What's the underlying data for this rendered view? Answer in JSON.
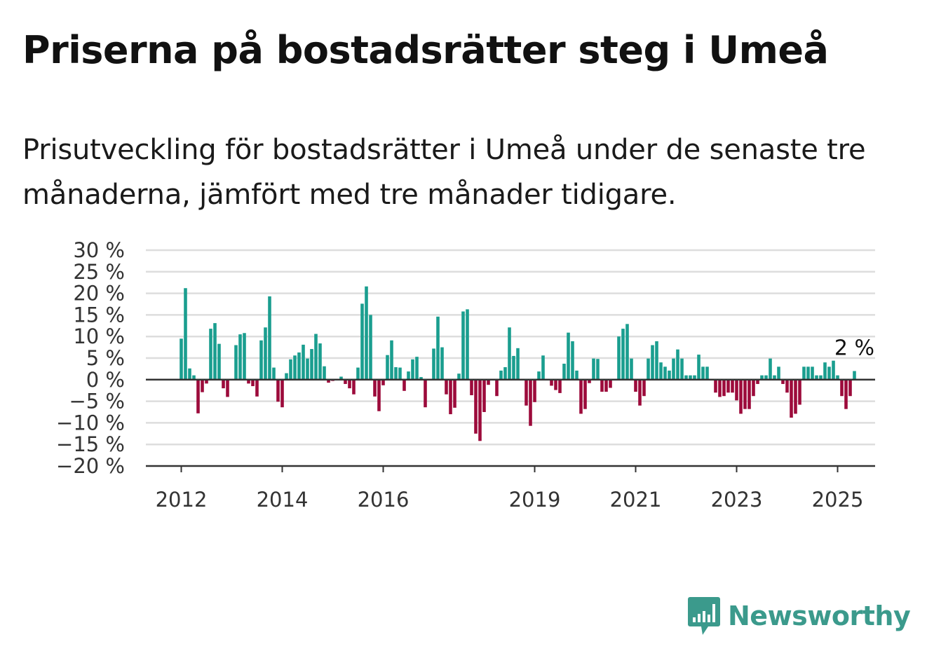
{
  "header": {
    "title": "Priserna på bostadsrätter steg i Umeå",
    "subtitle": "Prisutveckling för bostadsrätter i Umeå under de senaste tre månaderna, jämfört med tre månader tidigare."
  },
  "logo": {
    "text": "Newsworthy",
    "icon": "bar-chart-speech-bubble-icon"
  },
  "colors": {
    "positive": "#1a9e8f",
    "negative": "#9c0b3b",
    "grid": "#dddddd",
    "axis": "#333333",
    "brand": "#3b9a8c"
  },
  "chart_data": {
    "type": "bar",
    "title": "",
    "xlabel": "",
    "ylabel": "",
    "ylim": [
      -20,
      30
    ],
    "yticks": [
      30,
      25,
      20,
      15,
      10,
      5,
      0,
      -5,
      -10,
      -15,
      -20
    ],
    "ytick_labels": [
      "30 %",
      "25 %",
      "20 %",
      "15 %",
      "10 %",
      "5 %",
      "0 %",
      "−5 %",
      "−10 %",
      "−15 %",
      "−20 %"
    ],
    "xtick_labels": [
      "2012",
      "2014",
      "2016",
      "2019",
      "2021",
      "2023",
      "2025"
    ],
    "xtick_positions": [
      2012.0,
      2014.0,
      2016.0,
      2019.0,
      2021.0,
      2023.0,
      2025.0
    ],
    "grid": true,
    "last_label": "2 %",
    "x_start": 2012.0,
    "x_step": 0.08333333,
    "values": [
      9.5,
      21.2,
      2.6,
      1.0,
      -7.8,
      -2.9,
      -0.9,
      11.8,
      13.1,
      8.3,
      -2.0,
      -4.0,
      0,
      8.0,
      10.5,
      10.8,
      -0.9,
      -1.5,
      -3.9,
      9.1,
      12.1,
      19.3,
      2.8,
      -5.1,
      -6.4,
      1.5,
      4.7,
      5.6,
      6.3,
      8.1,
      4.9,
      7.1,
      10.6,
      8.4,
      3.1,
      -0.7,
      -0.3,
      0,
      0.7,
      -1.0,
      -2.0,
      -3.4,
      2.8,
      17.6,
      21.6,
      15.0,
      -3.9,
      -7.3,
      -1.3,
      5.7,
      9.1,
      2.9,
      2.8,
      -2.6,
      1.9,
      4.7,
      5.3,
      0.6,
      -6.4,
      0,
      7.2,
      14.6,
      7.5,
      -3.4,
      -8.0,
      -6.5,
      1.4,
      15.8,
      16.3,
      -3.6,
      -12.5,
      -14.2,
      -7.5,
      -1.2,
      0,
      -3.8,
      2.1,
      2.9,
      12.1,
      5.5,
      7.3,
      0,
      -6.0,
      -10.7,
      -5.2,
      1.9,
      5.6,
      0,
      -1.4,
      -2.4,
      -3.1,
      3.7,
      10.9,
      8.9,
      2.1,
      -7.9,
      -6.8,
      -0.8,
      4.9,
      4.8,
      -2.8,
      -2.8,
      -1.9,
      0,
      10.0,
      11.8,
      12.9,
      4.9,
      -2.8,
      -6.0,
      -3.8,
      4.9,
      8.0,
      8.9,
      4.0,
      3.0,
      2.1,
      4.9,
      7.0,
      4.9,
      1.0,
      1.0,
      1.0,
      5.8,
      3.0,
      3.0,
      0,
      -3.0,
      -4.0,
      -3.8,
      -3.0,
      -3.0,
      -4.8,
      -7.9,
      -6.8,
      -6.8,
      -3.8,
      -1.0,
      1.0,
      1.0,
      4.9,
      1.0,
      3.0,
      -1.0,
      -3.0,
      -8.8,
      -7.9,
      -5.8,
      3.0,
      3.0,
      3.0,
      1.0,
      1.0,
      4.0,
      3.0,
      4.4,
      1.0,
      -3.8,
      -6.8,
      -3.8,
      2.0
    ]
  }
}
